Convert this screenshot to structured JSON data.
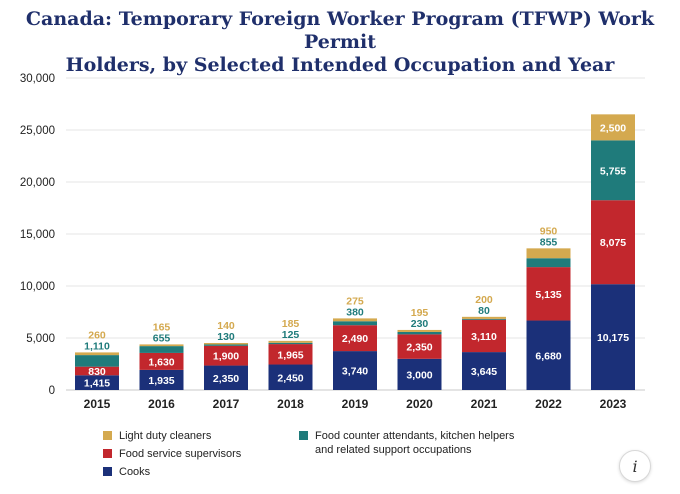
{
  "chart_data": {
    "type": "bar",
    "stacked": true,
    "title": "Canada: Temporary Foreign Worker Program (TFWP) Work Permit Holders, by Selected Intended Occupation and Year",
    "title_lines": [
      "Canada: Temporary Foreign Worker Program (TFWP) Work Permit",
      "Holders, by Selected Intended Occupation and Year"
    ],
    "categories": [
      "2015",
      "2016",
      "2017",
      "2018",
      "2019",
      "2020",
      "2021",
      "2022",
      "2023"
    ],
    "series": [
      {
        "name": "Cooks",
        "color": "#1b3079",
        "label_color": "#ffffff",
        "values": [
          1415,
          1935,
          2350,
          2450,
          3740,
          3000,
          3645,
          6680,
          10175
        ],
        "labels": [
          "1,415",
          "1,935",
          "2,350",
          "2,450",
          "3,740",
          "3,000",
          "3,645",
          "6,680",
          "10,175"
        ]
      },
      {
        "name": "Food service supervisors",
        "color": "#c2272d",
        "label_color": "#ffffff",
        "values": [
          830,
          1630,
          1900,
          1965,
          2490,
          2350,
          3110,
          5135,
          8075
        ],
        "labels": [
          "830",
          "1,630",
          "1,900",
          "1,965",
          "2,490",
          "2,350",
          "3,110",
          "5,135",
          "8,075"
        ]
      },
      {
        "name": "Food counter attendants, kitchen helpers and related support occupations",
        "name_lines": [
          "Food counter attendants, kitchen helpers",
          "and related support occupations"
        ],
        "color": "#1f7b7b",
        "label_color": "#1f7b7b",
        "values": [
          1110,
          655,
          130,
          125,
          380,
          230,
          80,
          855,
          5755
        ],
        "labels": [
          "1,110",
          "655",
          "130",
          "125",
          "380",
          "230",
          "80",
          "855",
          "5,755"
        ]
      },
      {
        "name": "Light duty cleaners",
        "color": "#d4a94f",
        "label_color": "#d4a94f",
        "values": [
          260,
          165,
          140,
          185,
          275,
          195,
          200,
          950,
          2500
        ],
        "labels": [
          "260",
          "165",
          "140",
          "185",
          "275",
          "195",
          "200",
          "950",
          "2,500"
        ]
      }
    ],
    "ylim": [
      0,
      30000
    ],
    "yticks": [
      0,
      5000,
      10000,
      15000,
      20000,
      25000,
      30000
    ],
    "ytick_labels": [
      "0",
      "5,000",
      "10,000",
      "15,000",
      "20,000",
      "25,000",
      "30,000"
    ],
    "xlabel": "",
    "ylabel": "",
    "grid": true,
    "legend_position": "bottom"
  },
  "info_button": {
    "label": "i"
  }
}
